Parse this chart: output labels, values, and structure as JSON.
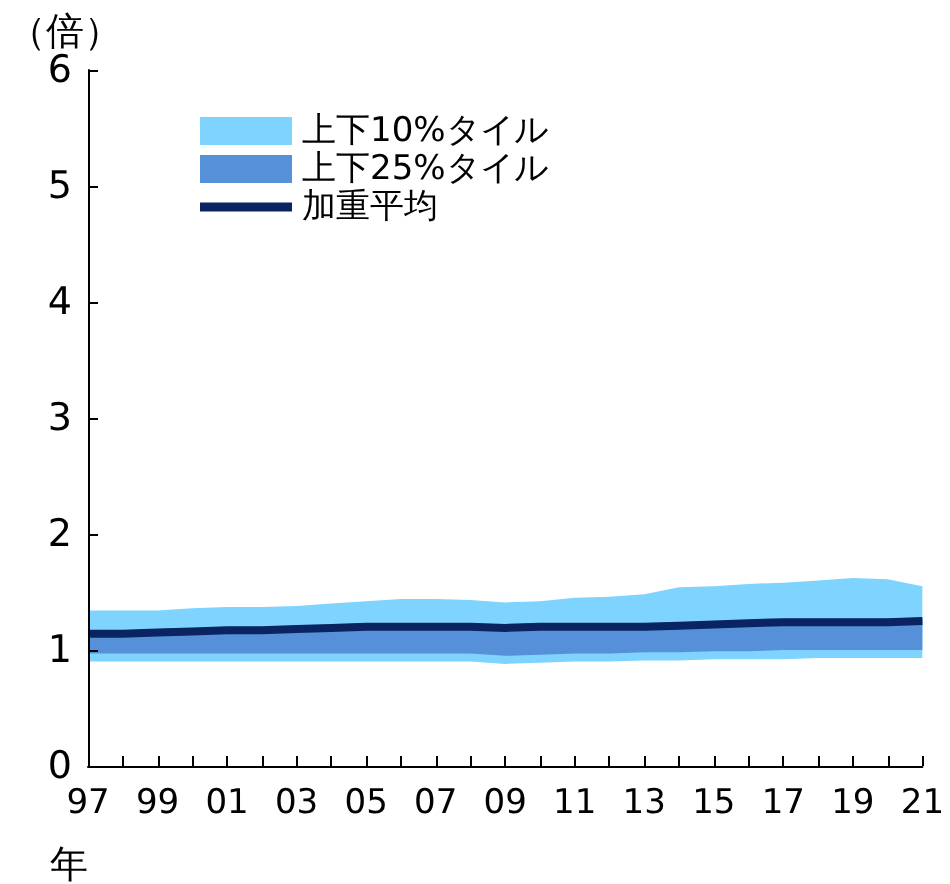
{
  "chart_data": {
    "type": "line",
    "ylabel": "（倍）",
    "xlabel": "年",
    "categories": [
      "97",
      null,
      "99",
      null,
      "01",
      null,
      "03",
      null,
      "05",
      null,
      "07",
      null,
      "09",
      null,
      "11",
      null,
      "13",
      null,
      "15",
      null,
      "17",
      null,
      "19",
      null,
      "21"
    ],
    "series": [
      {
        "name": "上下10%タイル",
        "color": "#7fd3ff",
        "values": [
          null,
          null,
          null,
          null,
          null,
          null,
          null,
          null,
          null,
          null,
          null,
          null,
          null,
          null,
          null,
          null,
          null,
          null,
          null,
          null,
          null,
          null,
          null,
          null,
          null
        ],
        "lower": [
          0.9,
          0.9,
          0.9,
          0.9,
          0.9,
          0.9,
          0.9,
          0.9,
          0.9,
          0.9,
          0.9,
          0.9,
          0.88,
          0.89,
          0.9,
          0.9,
          0.91,
          0.91,
          0.92,
          0.92,
          0.92,
          0.93,
          0.93,
          0.93,
          0.93
        ],
        "upper": [
          1.34,
          1.34,
          1.34,
          1.36,
          1.37,
          1.37,
          1.38,
          1.4,
          1.42,
          1.44,
          1.44,
          1.43,
          1.41,
          1.42,
          1.45,
          1.46,
          1.48,
          1.54,
          1.55,
          1.57,
          1.58,
          1.6,
          1.62,
          1.61,
          1.55
        ]
      },
      {
        "name": "上下25%タイル",
        "color": "#5590d8",
        "values": [
          null,
          null,
          null,
          null,
          null,
          null,
          null,
          null,
          null,
          null,
          null,
          null,
          null,
          null,
          null,
          null,
          null,
          null,
          null,
          null,
          null,
          null,
          null,
          null,
          null
        ],
        "lower": [
          0.97,
          0.97,
          0.97,
          0.97,
          0.97,
          0.97,
          0.97,
          0.97,
          0.97,
          0.97,
          0.97,
          0.97,
          0.95,
          0.96,
          0.97,
          0.97,
          0.98,
          0.98,
          0.99,
          0.99,
          1.0,
          1.0,
          1.0,
          1.0,
          1.0
        ],
        "upper": [
          1.17,
          1.17,
          1.18,
          1.19,
          1.2,
          1.2,
          1.21,
          1.22,
          1.23,
          1.23,
          1.23,
          1.23,
          1.22,
          1.23,
          1.23,
          1.23,
          1.23,
          1.24,
          1.25,
          1.26,
          1.27,
          1.27,
          1.27,
          1.27,
          1.28
        ]
      },
      {
        "name": "加重平均",
        "color": "#0a2462",
        "values": [
          1.14,
          1.14,
          1.15,
          1.16,
          1.17,
          1.17,
          1.18,
          1.19,
          1.2,
          1.2,
          1.2,
          1.2,
          1.19,
          1.2,
          1.2,
          1.2,
          1.2,
          1.21,
          1.22,
          1.23,
          1.24,
          1.24,
          1.24,
          1.24,
          1.25
        ]
      }
    ],
    "ylim": [
      0,
      6
    ],
    "yticks": [
      0,
      1,
      2,
      3,
      4,
      5,
      6
    ],
    "grid": false,
    "legend": "top left",
    "marker": "none",
    "line_style": "solid"
  }
}
